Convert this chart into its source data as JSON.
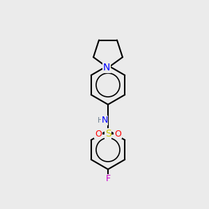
{
  "bg_color": "#ebebeb",
  "bond_color": "#000000",
  "bond_width": 1.5,
  "atom_colors": {
    "N": "#0000ff",
    "S": "#cccc00",
    "O": "#ff0000",
    "F": "#cc00cc",
    "H": "#708090",
    "C": "#000000"
  },
  "font_size": 9,
  "font_size_small": 8
}
